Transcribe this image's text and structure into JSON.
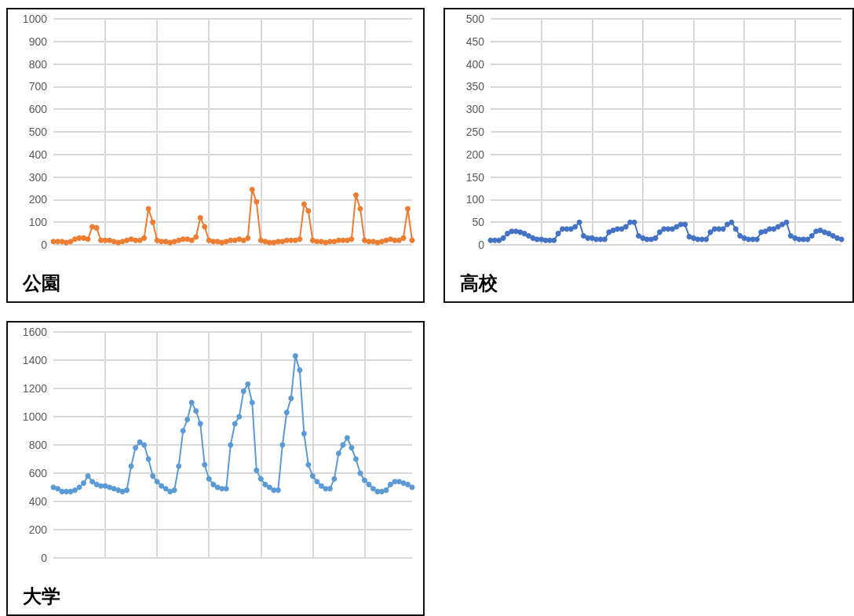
{
  "chart_data": [
    {
      "type": "line",
      "title": "公園",
      "categories": [
        null,
        null,
        null,
        null,
        null,
        null,
        null,
        null,
        null,
        null,
        null,
        null,
        null,
        null,
        null,
        null,
        null,
        null,
        null,
        null,
        null,
        null,
        null,
        null,
        null,
        null,
        null,
        null,
        null,
        null,
        null,
        null,
        null,
        null,
        null,
        null,
        null,
        null,
        null,
        null,
        null,
        null,
        null,
        null,
        null,
        null,
        null,
        null,
        null,
        null,
        null,
        null,
        null,
        null,
        null,
        null,
        null,
        null,
        null,
        null,
        null,
        null,
        null,
        null,
        null,
        null,
        null,
        null,
        null,
        null,
        null,
        null,
        null,
        null,
        null,
        null,
        null,
        null,
        null,
        null,
        null,
        null,
        null,
        null
      ],
      "series": [
        {
          "color": "#ed7d31",
          "values": [
            15,
            15,
            15,
            10,
            15,
            25,
            30,
            30,
            25,
            80,
            75,
            20,
            20,
            20,
            15,
            10,
            15,
            20,
            25,
            20,
            20,
            30,
            160,
            100,
            20,
            15,
            15,
            10,
            15,
            20,
            25,
            25,
            20,
            35,
            120,
            80,
            20,
            15,
            15,
            10,
            15,
            20,
            20,
            25,
            20,
            30,
            245,
            190,
            20,
            15,
            10,
            10,
            15,
            15,
            20,
            20,
            20,
            25,
            180,
            150,
            20,
            15,
            15,
            10,
            15,
            15,
            20,
            20,
            20,
            25,
            220,
            160,
            20,
            15,
            15,
            10,
            15,
            20,
            25,
            20,
            20,
            30,
            160,
            20
          ]
        }
      ],
      "ylim": [
        0,
        1000
      ],
      "yticks": [
        0,
        100,
        200,
        300,
        400,
        500,
        600,
        700,
        800,
        900,
        1000
      ],
      "grid": true,
      "tick_labels": "y",
      "marker": "circle",
      "line_style": "solid"
    },
    {
      "type": "line",
      "title": "高校",
      "categories": [
        null,
        null,
        null,
        null,
        null,
        null,
        null,
        null,
        null,
        null,
        null,
        null,
        null,
        null,
        null,
        null,
        null,
        null,
        null,
        null,
        null,
        null,
        null,
        null,
        null,
        null,
        null,
        null,
        null,
        null,
        null,
        null,
        null,
        null,
        null,
        null,
        null,
        null,
        null,
        null,
        null,
        null,
        null,
        null,
        null,
        null,
        null,
        null,
        null,
        null,
        null,
        null,
        null,
        null,
        null,
        null,
        null,
        null,
        null,
        null,
        null,
        null,
        null,
        null,
        null,
        null,
        null,
        null,
        null,
        null,
        null,
        null,
        null,
        null,
        null,
        null,
        null,
        null,
        null,
        null,
        null,
        null,
        null,
        null
      ],
      "series": [
        {
          "color": "#4472c4",
          "values": [
            10,
            10,
            10,
            15,
            25,
            30,
            30,
            28,
            25,
            20,
            15,
            12,
            12,
            10,
            10,
            10,
            25,
            35,
            35,
            35,
            40,
            50,
            20,
            15,
            15,
            12,
            12,
            12,
            28,
            32,
            35,
            35,
            40,
            50,
            50,
            20,
            15,
            12,
            12,
            15,
            28,
            35,
            35,
            35,
            40,
            45,
            45,
            18,
            15,
            12,
            12,
            12,
            28,
            35,
            35,
            35,
            45,
            50,
            35,
            20,
            15,
            12,
            12,
            12,
            28,
            30,
            35,
            35,
            40,
            45,
            50,
            20,
            15,
            12,
            12,
            12,
            20,
            30,
            32,
            28,
            25,
            20,
            15,
            12
          ]
        }
      ],
      "ylim": [
        0,
        500
      ],
      "yticks": [
        0,
        50,
        100,
        150,
        200,
        250,
        300,
        350,
        400,
        450,
        500
      ],
      "grid": true,
      "tick_labels": "y",
      "marker": "circle",
      "line_style": "solid"
    },
    {
      "type": "line",
      "title": "大学",
      "categories": [
        null,
        null,
        null,
        null,
        null,
        null,
        null,
        null,
        null,
        null,
        null,
        null,
        null,
        null,
        null,
        null,
        null,
        null,
        null,
        null,
        null,
        null,
        null,
        null,
        null,
        null,
        null,
        null,
        null,
        null,
        null,
        null,
        null,
        null,
        null,
        null,
        null,
        null,
        null,
        null,
        null,
        null,
        null,
        null,
        null,
        null,
        null,
        null,
        null,
        null,
        null,
        null,
        null,
        null,
        null,
        null,
        null,
        null,
        null,
        null,
        null,
        null,
        null,
        null,
        null,
        null,
        null,
        null,
        null,
        null,
        null,
        null,
        null,
        null,
        null,
        null,
        null,
        null,
        null,
        null,
        null,
        null,
        null,
        null
      ],
      "series": [
        {
          "color": "#5b9bd5",
          "values": [
            500,
            490,
            470,
            470,
            470,
            480,
            500,
            530,
            580,
            540,
            520,
            510,
            510,
            500,
            490,
            480,
            470,
            480,
            650,
            780,
            820,
            800,
            700,
            580,
            540,
            510,
            490,
            470,
            480,
            650,
            900,
            980,
            1100,
            1040,
            950,
            660,
            560,
            520,
            500,
            490,
            490,
            800,
            950,
            1000,
            1180,
            1230,
            1100,
            620,
            560,
            520,
            500,
            480,
            480,
            800,
            1030,
            1130,
            1430,
            1330,
            880,
            660,
            580,
            540,
            510,
            490,
            490,
            560,
            740,
            800,
            850,
            780,
            700,
            600,
            550,
            520,
            490,
            470,
            470,
            480,
            520,
            540,
            540,
            530,
            520,
            500
          ]
        }
      ],
      "ylim": [
        0,
        1600
      ],
      "yticks": [
        0,
        200,
        400,
        600,
        800,
        1000,
        1200,
        1400,
        1600
      ],
      "grid": true,
      "tick_labels": "y",
      "marker": "circle",
      "line_style": "solid"
    }
  ]
}
